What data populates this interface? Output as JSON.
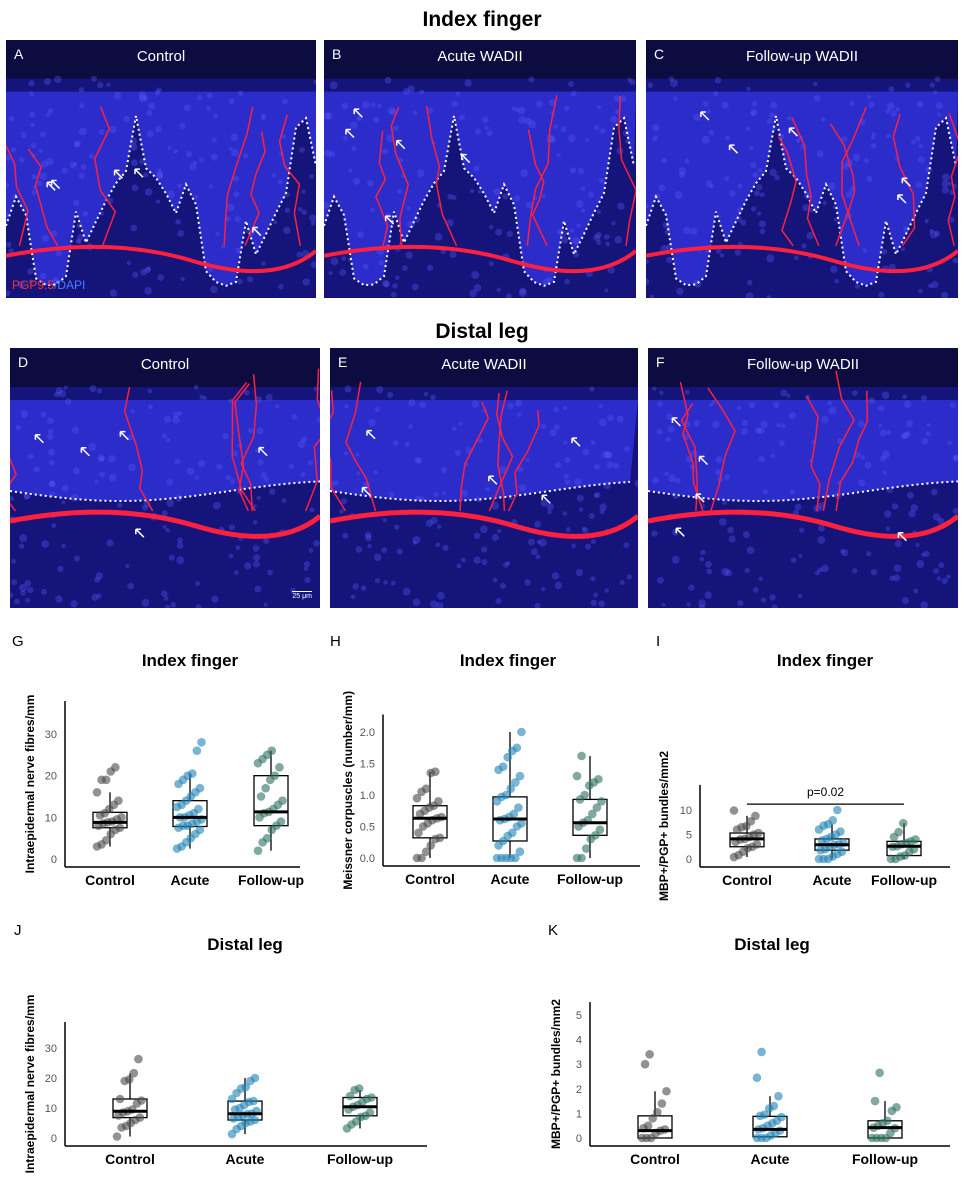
{
  "figure": {
    "section_titles": [
      "Index finger",
      "Distal leg"
    ],
    "panels": [
      {
        "label": "A",
        "title": "Control"
      },
      {
        "label": "B",
        "title": "Acute WADII"
      },
      {
        "label": "C",
        "title": "Follow-up WADII"
      },
      {
        "label": "D",
        "title": "Control"
      },
      {
        "label": "E",
        "title": "Acute WADII"
      },
      {
        "label": "F",
        "title": "Follow-up WADII"
      }
    ],
    "stain_label": {
      "red": "PGP9.5",
      "blue": "/DAPI"
    },
    "scale_bar": "25 μm"
  },
  "colors": {
    "control": "#4a4a4a",
    "acute": "#1f82b4",
    "followup": "#2f6f60",
    "tissue_blue": "#2a2ad0",
    "nerve_red": "#ff2040"
  },
  "chart_data": [
    {
      "panel": "G",
      "type": "box",
      "title": "Index finger",
      "ylabel": "Intraepidermal nerve fibres/mm",
      "ylim": [
        0,
        36
      ],
      "yticks": [
        0,
        10,
        20,
        30
      ],
      "categories": [
        "Control",
        "Acute",
        "Follow-up"
      ],
      "series": [
        {
          "name": "Control",
          "q1": 7.5,
          "median": 8.8,
          "q3": 11.2,
          "whisker_low": 3,
          "whisker_high": 16,
          "points": [
            3,
            3.5,
            4.5,
            6,
            7,
            7.5,
            8,
            8.5,
            8.8,
            9,
            9.5,
            10,
            10.5,
            11,
            12,
            13,
            14,
            16,
            19,
            19,
            21,
            22
          ]
        },
        {
          "name": "Acute",
          "q1": 7.8,
          "median": 10,
          "q3": 14,
          "whisker_low": 2.5,
          "whisker_high": 20.5,
          "points": [
            2.5,
            3,
            4,
            5,
            6,
            7,
            7.5,
            8,
            8,
            8.5,
            9,
            9.5,
            10,
            10,
            10.5,
            11,
            12,
            12.5,
            13,
            14,
            15,
            16,
            17,
            18,
            19,
            20,
            20.5,
            26,
            28
          ]
        },
        {
          "name": "Follow-up",
          "q1": 8,
          "median": 11.3,
          "q3": 20,
          "whisker_low": 2,
          "whisker_high": 26,
          "points": [
            2,
            4,
            5,
            7,
            8,
            9,
            10,
            11,
            11.3,
            12,
            13,
            14,
            15,
            17,
            19,
            20,
            22,
            23,
            24,
            25,
            26
          ]
        }
      ]
    },
    {
      "panel": "H",
      "type": "box",
      "title": "Index finger",
      "ylabel": "Meissner corpuscles (number/mm)",
      "ylim": [
        0,
        2.15
      ],
      "yticks": [
        "0.0",
        "0.5",
        "1.0",
        "1.5",
        "2.0"
      ],
      "categories": [
        "Control",
        "Acute",
        "Follow-up"
      ],
      "series": [
        {
          "name": "Control",
          "q1": 0.32,
          "median": 0.63,
          "q3": 0.83,
          "whisker_low": 0,
          "whisker_high": 1.37,
          "points": [
            0,
            0,
            0.1,
            0.2,
            0.3,
            0.32,
            0.4,
            0.5,
            0.55,
            0.6,
            0.63,
            0.65,
            0.7,
            0.75,
            0.8,
            0.83,
            0.9,
            0.95,
            1.05,
            1.1,
            1.35,
            1.37
          ]
        },
        {
          "name": "Acute",
          "q1": 0.27,
          "median": 0.62,
          "q3": 0.97,
          "whisker_low": 0,
          "whisker_high": 2.0,
          "points": [
            0,
            0,
            0,
            0,
            0,
            0.1,
            0.2,
            0.27,
            0.35,
            0.4,
            0.5,
            0.55,
            0.6,
            0.62,
            0.65,
            0.7,
            0.8,
            0.9,
            0.97,
            1.0,
            1.1,
            1.2,
            1.3,
            1.4,
            1.45,
            1.6,
            1.7,
            1.75,
            2.0
          ]
        },
        {
          "name": "Follow-up",
          "q1": 0.36,
          "median": 0.56,
          "q3": 0.93,
          "whisker_low": 0,
          "whisker_high": 1.62,
          "points": [
            0,
            0,
            0.15,
            0.3,
            0.36,
            0.45,
            0.5,
            0.56,
            0.6,
            0.7,
            0.8,
            0.9,
            0.93,
            1.0,
            1.15,
            1.2,
            1.25,
            1.3,
            1.62
          ]
        }
      ]
    },
    {
      "panel": "I",
      "type": "box",
      "title": "Index finger",
      "ylabel": "MBP+/PGP+ bundles/mm2",
      "ylim": [
        0,
        13.5
      ],
      "yticks": [
        0,
        5,
        10
      ],
      "categories": [
        "Control",
        "Acute",
        "Follow-up"
      ],
      "annotation": {
        "text": "p=0.02",
        "from": "Control",
        "to": "Follow-up",
        "y": 11.2
      },
      "series": [
        {
          "name": "Control",
          "q1": 2.5,
          "median": 4.1,
          "q3": 5.3,
          "whisker_low": 0.4,
          "whisker_high": 8.8,
          "points": [
            0.4,
            0.8,
            1.5,
            2.2,
            2.5,
            3,
            3.5,
            4,
            4.1,
            4.5,
            5,
            5.3,
            6,
            6.5,
            6.7,
            7.7,
            8.8,
            9.9
          ]
        },
        {
          "name": "Acute",
          "q1": 1.8,
          "median": 2.9,
          "q3": 4.1,
          "whisker_low": 0,
          "whisker_high": 7.1,
          "points": [
            0,
            0,
            0,
            0.5,
            1,
            1.5,
            1.8,
            2,
            2.5,
            2.9,
            3,
            3.3,
            3.8,
            4.1,
            4.5,
            5,
            5.6,
            6,
            6.8,
            7.1,
            7.9,
            10
          ]
        },
        {
          "name": "Follow-up",
          "q1": 0.7,
          "median": 2.6,
          "q3": 3.6,
          "whisker_low": 0,
          "whisker_high": 7.3,
          "points": [
            0,
            0,
            0.5,
            0.7,
            1.5,
            2,
            2.5,
            2.6,
            3,
            3.3,
            3.6,
            4,
            4.5,
            5.5,
            7.3
          ]
        }
      ]
    },
    {
      "panel": "J",
      "type": "box",
      "title": "Distal leg",
      "ylabel": "Intraepidermal nerve fibres/mm",
      "ylim": [
        0,
        36
      ],
      "yticks": [
        0,
        10,
        20,
        30
      ],
      "categories": [
        "Control",
        "Acute",
        "Follow-up"
      ],
      "series": [
        {
          "name": "Control",
          "q1": 6.8,
          "median": 8.9,
          "q3": 13,
          "whisker_low": 0.5,
          "whisker_high": 21.6,
          "points": [
            0.5,
            3.5,
            4,
            5,
            6,
            6.8,
            7.5,
            8.5,
            8.9,
            9.5,
            11.5,
            12.5,
            13,
            19,
            19.5,
            21.6,
            26.3
          ]
        },
        {
          "name": "Acute",
          "q1": 6,
          "median": 8.1,
          "q3": 12.3,
          "whisker_low": 1.3,
          "whisker_high": 20,
          "points": [
            1.3,
            3,
            4,
            5,
            5.5,
            6,
            6.5,
            7,
            7.5,
            8,
            8.1,
            9,
            9.5,
            10,
            11,
            12,
            12.3,
            13,
            15,
            16.5,
            17,
            19,
            20
          ]
        },
        {
          "name": "Follow-up",
          "q1": 7.4,
          "median": 10.4,
          "q3": 13.5,
          "whisker_low": 3.2,
          "whisker_high": 16,
          "points": [
            3.2,
            4.5,
            5.5,
            7,
            7.4,
            8.5,
            9.5,
            10.4,
            11,
            12,
            13,
            13.5,
            14,
            16,
            16.5
          ]
        }
      ]
    },
    {
      "panel": "K",
      "type": "box",
      "title": "Distal leg",
      "ylabel": "MBP+/PGP+ bundles/mm2",
      "ylim": [
        0,
        5.2
      ],
      "yticks": [
        0,
        1,
        2,
        3,
        4,
        5
      ],
      "categories": [
        "Control",
        "Acute",
        "Follow-up"
      ],
      "series": [
        {
          "name": "Control",
          "q1": 0,
          "median": 0.3,
          "q3": 0.9,
          "whisker_low": 0,
          "whisker_high": 1.9,
          "points": [
            0,
            0,
            0,
            0.2,
            0.3,
            0.35,
            0.4,
            0.5,
            0.8,
            1.05,
            1.4,
            1.9,
            3.0,
            3.4
          ]
        },
        {
          "name": "Acute",
          "q1": 0.05,
          "median": 0.35,
          "q3": 0.88,
          "whisker_low": 0,
          "whisker_high": 1.7,
          "points": [
            0,
            0,
            0,
            0.1,
            0.2,
            0.3,
            0.35,
            0.4,
            0.5,
            0.6,
            0.7,
            0.85,
            0.9,
            0.95,
            1.2,
            1.3,
            1.7,
            2.45,
            3.5
          ]
        },
        {
          "name": "Follow-up",
          "q1": 0,
          "median": 0.42,
          "q3": 0.7,
          "whisker_low": 0,
          "whisker_high": 1.5,
          "points": [
            0,
            0,
            0,
            0,
            0.2,
            0.4,
            0.42,
            0.5,
            0.6,
            0.7,
            1.1,
            1.25,
            1.5,
            2.65
          ]
        }
      ]
    }
  ]
}
